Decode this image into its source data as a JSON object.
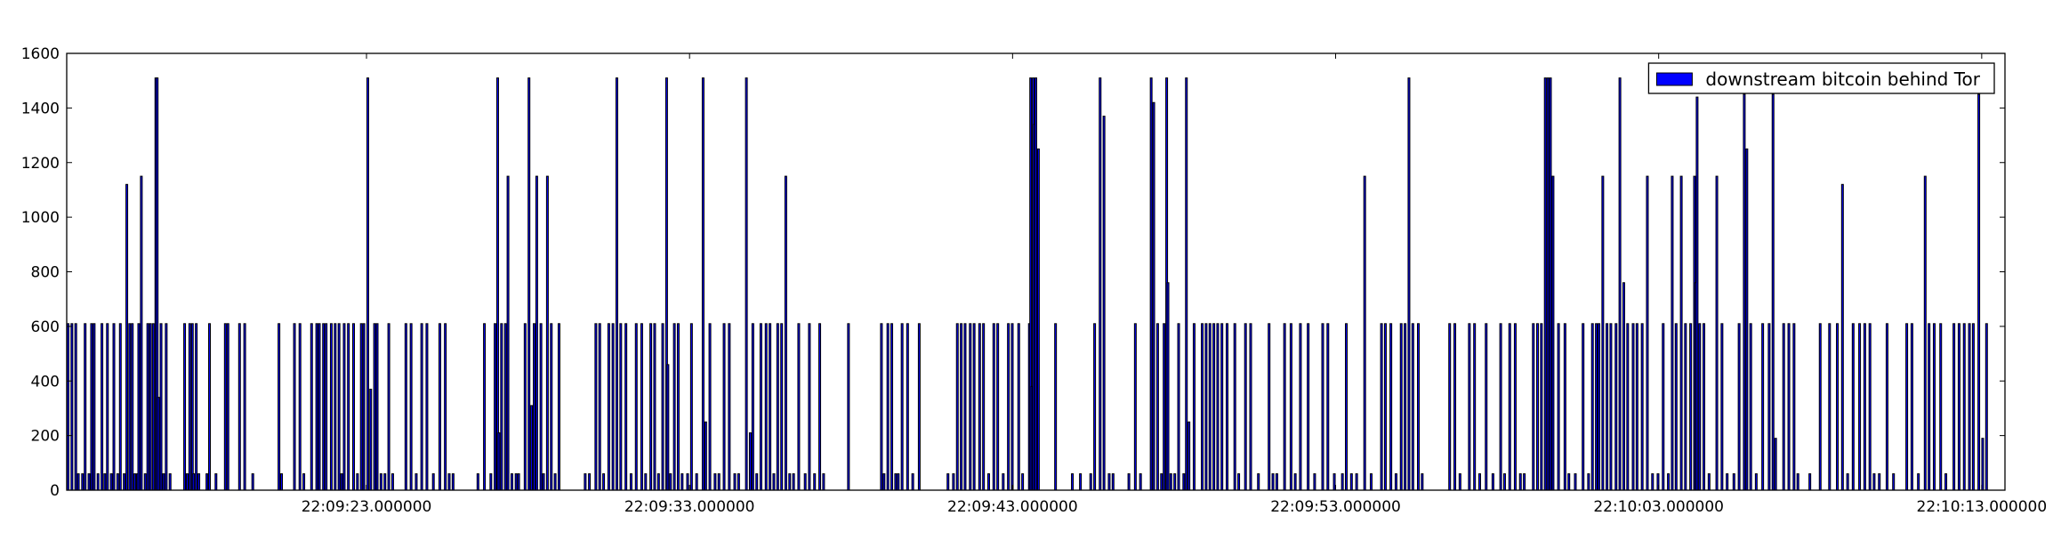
{
  "chart_data": {
    "type": "bar",
    "x": [
      13.76,
      13.88,
      14.0,
      14.08,
      14.21,
      14.29,
      14.41,
      14.49,
      14.57,
      14.69,
      14.81,
      14.9,
      14.98,
      15.1,
      15.18,
      15.3,
      15.38,
      15.5,
      15.58,
      15.67,
      15.75,
      15.83,
      15.91,
      15.95,
      16.03,
      16.15,
      16.23,
      16.31,
      16.4,
      16.48,
      16.52,
      16.56,
      16.64,
      16.72,
      16.8,
      16.92,
      17.37,
      17.45,
      17.53,
      17.61,
      17.65,
      17.73,
      17.81,
      18.06,
      18.14,
      18.34,
      18.63,
      18.71,
      19.07,
      19.23,
      19.48,
      20.29,
      20.37,
      20.77,
      20.94,
      21.06,
      21.3,
      21.46,
      21.54,
      21.67,
      21.75,
      21.91,
      22.03,
      22.15,
      22.23,
      22.31,
      22.44,
      22.6,
      22.72,
      22.84,
      22.92,
      23.04,
      23.13,
      23.25,
      23.33,
      23.45,
      23.57,
      23.69,
      23.81,
      24.22,
      24.38,
      24.54,
      24.71,
      24.87,
      25.07,
      25.27,
      25.44,
      25.56,
      25.68,
      26.45,
      26.65,
      26.85,
      26.98,
      27.06,
      27.1,
      27.18,
      27.3,
      27.38,
      27.5,
      27.63,
      27.71,
      27.91,
      28.03,
      28.11,
      28.19,
      28.27,
      28.4,
      28.48,
      28.6,
      28.72,
      28.84,
      28.96,
      29.77,
      29.9,
      30.1,
      30.22,
      30.34,
      30.5,
      30.63,
      30.75,
      30.87,
      31.03,
      31.19,
      31.35,
      31.52,
      31.64,
      31.8,
      31.92,
      32.04,
      32.17,
      32.29,
      32.33,
      32.41,
      32.53,
      32.65,
      32.77,
      32.94,
      33.06,
      33.22,
      33.42,
      33.5,
      33.63,
      33.79,
      33.91,
      34.07,
      34.23,
      34.4,
      34.52,
      34.76,
      34.88,
      34.96,
      35.08,
      35.21,
      35.37,
      35.49,
      35.61,
      35.73,
      35.85,
      35.98,
      36.1,
      36.22,
      36.38,
      36.58,
      36.71,
      36.87,
      37.03,
      37.15,
      37.92,
      38.94,
      39.02,
      39.14,
      39.26,
      39.38,
      39.46,
      39.58,
      39.75,
      39.91,
      40.11,
      41.0,
      41.17,
      41.29,
      41.41,
      41.53,
      41.69,
      41.81,
      41.98,
      42.1,
      42.26,
      42.42,
      42.54,
      42.71,
      42.87,
      42.99,
      43.19,
      43.31,
      43.52,
      43.56,
      43.6,
      43.64,
      43.68,
      43.72,
      43.8,
      44.33,
      44.85,
      45.1,
      45.42,
      45.54,
      45.71,
      45.83,
      45.99,
      46.11,
      46.6,
      46.8,
      46.96,
      47.29,
      47.37,
      47.49,
      47.61,
      47.69,
      47.77,
      47.81,
      47.9,
      48.02,
      48.14,
      48.3,
      48.38,
      48.46,
      48.62,
      48.87,
      48.99,
      49.11,
      49.23,
      49.35,
      49.48,
      49.64,
      49.88,
      50.0,
      50.21,
      50.37,
      50.61,
      50.94,
      51.06,
      51.18,
      51.42,
      51.62,
      51.75,
      51.91,
      52.15,
      52.35,
      52.6,
      52.76,
      52.96,
      53.21,
      53.33,
      53.49,
      53.65,
      53.9,
      54.1,
      54.42,
      54.54,
      54.71,
      54.87,
      55.03,
      55.15,
      55.27,
      55.39,
      55.56,
      55.68,
      56.53,
      56.69,
      56.85,
      57.14,
      57.3,
      57.46,
      57.66,
      57.87,
      58.11,
      58.23,
      58.39,
      58.56,
      58.72,
      58.84,
      59.12,
      59.25,
      59.37,
      59.49,
      59.57,
      59.65,
      59.73,
      59.9,
      60.1,
      60.22,
      60.42,
      60.66,
      60.83,
      60.95,
      61.07,
      61.15,
      61.27,
      61.4,
      61.52,
      61.68,
      61.8,
      61.92,
      62.04,
      62.21,
      62.33,
      62.49,
      62.65,
      62.81,
      62.98,
      63.14,
      63.3,
      63.42,
      63.54,
      63.7,
      63.83,
      63.99,
      64.11,
      64.15,
      64.19,
      64.27,
      64.4,
      64.56,
      64.8,
      64.96,
      65.12,
      65.33,
      65.49,
      65.65,
      65.73,
      65.85,
      66.02,
      66.22,
      66.42,
      66.54,
      66.62,
      66.87,
      67.03,
      67.19,
      67.31,
      67.68,
      68.0,
      68.29,
      68.53,
      68.69,
      68.85,
      69.02,
      69.22,
      69.38,
      69.54,
      69.67,
      69.83,
      70.07,
      70.27,
      70.68,
      70.84,
      71.04,
      71.25,
      71.37,
      71.53,
      71.73,
      71.89,
      72.14,
      72.3,
      72.46,
      72.62,
      72.74,
      72.91,
      73.03,
      73.15
    ],
    "series": [
      {
        "name": "downstream bitcoin behind Tor",
        "color": "#0000ff",
        "edgecolor": "#000000",
        "values": [
          610,
          610,
          610,
          60,
          60,
          610,
          60,
          610,
          610,
          60,
          610,
          60,
          610,
          60,
          610,
          60,
          610,
          60,
          1120,
          610,
          610,
          60,
          60,
          610,
          1150,
          60,
          610,
          610,
          610,
          1510,
          1510,
          340,
          610,
          60,
          610,
          60,
          610,
          60,
          610,
          610,
          60,
          610,
          60,
          60,
          610,
          60,
          610,
          610,
          610,
          610,
          60,
          610,
          60,
          610,
          610,
          60,
          610,
          610,
          610,
          610,
          610,
          610,
          610,
          610,
          60,
          610,
          610,
          610,
          60,
          610,
          610,
          1510,
          370,
          610,
          610,
          60,
          60,
          610,
          60,
          610,
          610,
          60,
          610,
          610,
          60,
          610,
          610,
          60,
          60,
          60,
          610,
          60,
          610,
          1510,
          210,
          610,
          610,
          1150,
          60,
          60,
          60,
          610,
          1510,
          310,
          610,
          1150,
          610,
          60,
          1150,
          610,
          60,
          610,
          60,
          60,
          610,
          610,
          60,
          610,
          610,
          1510,
          610,
          610,
          60,
          610,
          610,
          60,
          610,
          610,
          60,
          610,
          1510,
          460,
          60,
          610,
          610,
          60,
          60,
          610,
          60,
          1510,
          250,
          610,
          60,
          60,
          610,
          610,
          60,
          60,
          1510,
          210,
          610,
          60,
          610,
          610,
          610,
          60,
          610,
          610,
          1150,
          60,
          60,
          610,
          60,
          610,
          60,
          610,
          60,
          610,
          610,
          60,
          610,
          610,
          60,
          60,
          610,
          610,
          60,
          610,
          60,
          60,
          610,
          610,
          610,
          610,
          610,
          610,
          610,
          60,
          610,
          610,
          60,
          610,
          610,
          610,
          60,
          610,
          1510,
          380,
          1510,
          1340,
          1510,
          1250,
          610,
          60,
          60,
          60,
          610,
          1510,
          1370,
          60,
          60,
          60,
          610,
          60,
          1510,
          1420,
          610,
          60,
          610,
          1510,
          760,
          60,
          60,
          610,
          60,
          1510,
          250,
          610,
          610,
          610,
          610,
          610,
          610,
          610,
          610,
          610,
          60,
          610,
          610,
          60,
          610,
          60,
          60,
          610,
          610,
          60,
          610,
          610,
          60,
          610,
          610,
          60,
          60,
          610,
          60,
          60,
          1150,
          60,
          610,
          610,
          610,
          60,
          610,
          610,
          1510,
          610,
          610,
          60,
          610,
          610,
          60,
          610,
          610,
          60,
          610,
          60,
          610,
          60,
          610,
          610,
          60,
          60,
          610,
          610,
          610,
          1510,
          1510,
          1510,
          1150,
          610,
          610,
          60,
          60,
          610,
          60,
          610,
          610,
          610,
          1150,
          610,
          610,
          610,
          1510,
          760,
          610,
          610,
          610,
          610,
          1150,
          60,
          60,
          610,
          60,
          1150,
          610,
          1150,
          610,
          610,
          1150,
          760,
          1440,
          610,
          610,
          60,
          1150,
          610,
          60,
          60,
          610,
          1450,
          1250,
          610,
          60,
          610,
          610,
          1450,
          190,
          610,
          610,
          610,
          60,
          60,
          610,
          610,
          610,
          1120,
          60,
          610,
          610,
          610,
          610,
          60,
          60,
          610,
          60,
          610,
          610,
          60,
          1150,
          610,
          610,
          610,
          60,
          610,
          610,
          610,
          610,
          610,
          1450,
          190,
          610
        ]
      }
    ],
    "xlim": [
      13.72,
      73.72
    ],
    "xticks": [
      {
        "value": 23,
        "label": "22:09:23.000000"
      },
      {
        "value": 33,
        "label": "22:09:33.000000"
      },
      {
        "value": 43,
        "label": "22:09:43.000000"
      },
      {
        "value": 53,
        "label": "22:09:53.000000"
      },
      {
        "value": 63,
        "label": "22:10:03.000000"
      },
      {
        "value": 73,
        "label": "22:10:13.000000"
      }
    ],
    "ylim": [
      0,
      1600
    ],
    "yticks": [
      0,
      200,
      400,
      600,
      800,
      1000,
      1200,
      1400,
      1600
    ],
    "grid": false,
    "legend": "upper right"
  }
}
